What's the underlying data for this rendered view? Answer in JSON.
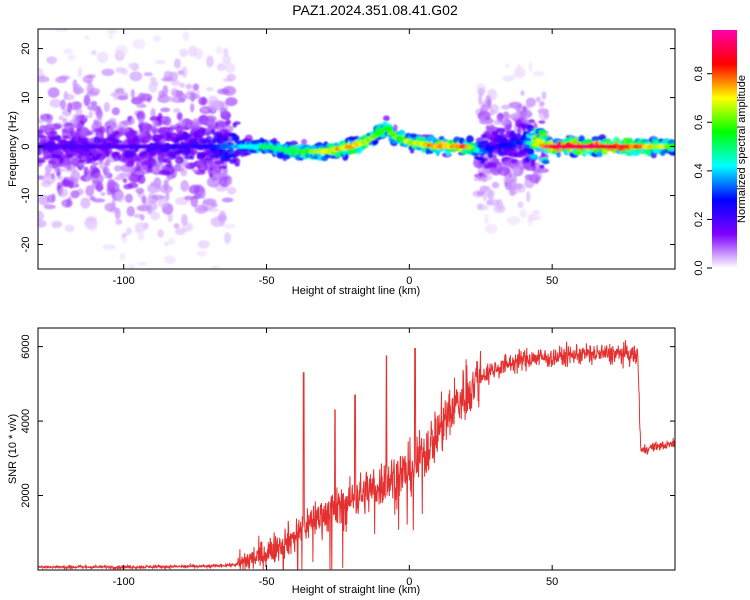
{
  "title": "PAZ1.2024.351.08.41.G02",
  "chart_data": [
    {
      "type": "heatmap",
      "title": "PAZ1.2024.351.08.41.G02",
      "xlabel": "Height of straight line (km)",
      "ylabel": "Frequency (Hz)",
      "xlim": [
        -130,
        93
      ],
      "ylim": [
        -25,
        24
      ],
      "xticks": [
        -100,
        -50,
        0,
        50
      ],
      "yticks": [
        -20,
        -10,
        0,
        10,
        20
      ],
      "grid": false,
      "colorbar": {
        "label": "Normalized spectral amplitude",
        "range": [
          0,
          0.98
        ],
        "ticks": [
          0.0,
          0.2,
          0.4,
          0.6,
          0.8
        ],
        "colormap": "rainbow",
        "colors": [
          "#ffffff",
          "#7f00ff",
          "#0000ff",
          "#00ffff",
          "#00ff00",
          "#ffff00",
          "#ff0000",
          "#ff00aa"
        ]
      },
      "ridge": {
        "x": [
          -130,
          -100,
          -70,
          -60,
          -50,
          -40,
          -30,
          -20,
          -15,
          -10,
          -8,
          -5,
          0,
          10,
          20,
          25,
          30,
          40,
          48,
          60,
          70,
          80,
          93
        ],
        "y": [
          0,
          0,
          0,
          0,
          0,
          -1,
          -1,
          0,
          1,
          3,
          4,
          2,
          1,
          0,
          0,
          -1,
          0,
          1,
          0,
          0,
          0,
          0,
          0
        ],
        "peak_amplitude": [
          0.2,
          0.2,
          0.25,
          0.4,
          0.5,
          0.55,
          0.7,
          0.8,
          0.7,
          0.6,
          0.55,
          0.6,
          0.7,
          0.8,
          0.8,
          0.4,
          0.25,
          0.3,
          0.9,
          0.95,
          0.95,
          0.85,
          0.6
        ]
      },
      "scatter_regions": [
        {
          "x": [
            -130,
            -62
          ],
          "spread_hz": 24,
          "amplitude": 0.15
        },
        {
          "x": [
            24,
            48
          ],
          "spread_hz": 16,
          "amplitude": 0.15
        }
      ]
    },
    {
      "type": "line",
      "xlabel": "Height of straight line (km)",
      "ylabel": "SNR (10 * v/v)",
      "xlim": [
        -130,
        93
      ],
      "ylim": [
        0,
        6500
      ],
      "xticks": [
        -100,
        -50,
        0,
        50
      ],
      "yticks": [
        2000,
        4000,
        6000
      ],
      "grid": false,
      "series": [
        {
          "color": "#e53030",
          "x": [
            -130,
            -100,
            -70,
            -60,
            -55,
            -50,
            -45,
            -40,
            -35,
            -30,
            -25,
            -20,
            -15,
            -10,
            -5,
            0,
            5,
            10,
            15,
            20,
            25,
            30,
            35,
            40,
            45,
            50,
            55,
            60,
            65,
            70,
            75,
            80,
            81,
            85,
            90,
            93
          ],
          "y": [
            80,
            80,
            100,
            150,
            300,
            450,
            700,
            900,
            1300,
            1500,
            1650,
            1900,
            2100,
            2300,
            2500,
            2700,
            3100,
            3700,
            4300,
            4800,
            5200,
            5400,
            5550,
            5650,
            5700,
            5700,
            5750,
            5800,
            5800,
            5800,
            5800,
            5750,
            3200,
            3300,
            3350,
            3400
          ]
        }
      ],
      "spikes": [
        {
          "x": -37,
          "y": 5300
        },
        {
          "x": -26,
          "y": 4300
        },
        {
          "x": -19,
          "y": 4700
        },
        {
          "x": -8,
          "y": 5750
        },
        {
          "x": 2,
          "y": 5950
        }
      ]
    }
  ]
}
